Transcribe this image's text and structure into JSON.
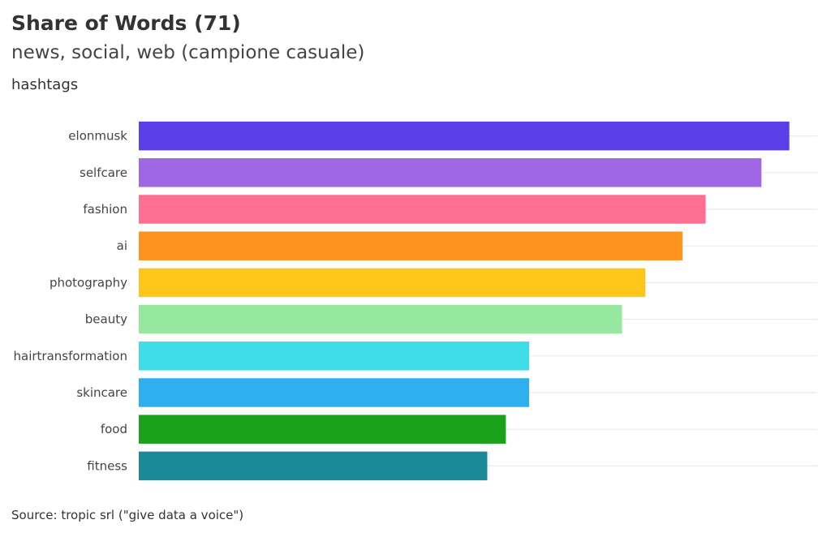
{
  "title": "Share of Words (71)",
  "subtitle": "news, social, web (campione casuale)",
  "caption": "Source: tropic srl (\"give data a voice\")",
  "chart_data": {
    "type": "bar",
    "orientation": "horizontal",
    "title": "Share of Words (71)",
    "subtitle": "news, social, web (campione casuale)",
    "ylabel": "hashtags",
    "xlabel": "",
    "categories": [
      "elonmusk",
      "selfcare",
      "fashion",
      "ai",
      "photography",
      "beauty",
      "hairtransformation",
      "skincare",
      "food",
      "fitness"
    ],
    "values": [
      14,
      13.4,
      12.2,
      11.7,
      10.9,
      10.4,
      8.4,
      8.4,
      7.9,
      7.5
    ],
    "colors": [
      "#5a3fe8",
      "#9f67e3",
      "#ff6f91",
      "#ff931e",
      "#ffc61a",
      "#96e8a0",
      "#3fdde8",
      "#2fb0ee",
      "#1aa31a",
      "#1a8a99"
    ],
    "xlim": [
      0,
      14.6
    ],
    "grid": true,
    "x_ticks_shown": false,
    "legend": "none"
  }
}
